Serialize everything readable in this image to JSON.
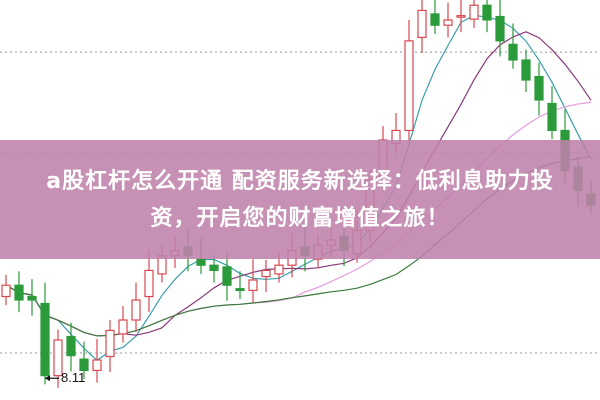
{
  "title": {
    "line1": "a股杠杆怎么开通 配资服务新选择：低利息助力投",
    "line2": "资，开启您的财富增值之旅！"
  },
  "chart_data": {
    "type": "candlestick",
    "ylim": [
      7.86,
      12.46
    ],
    "gridlines": [
      11.86,
      10.7,
      8.4
    ],
    "grid_style": "dotted",
    "up_color": "#d9474f",
    "down_color": "#2a9a3a",
    "ma_colors": [
      "#3aa0a8",
      "#8a3a7a",
      "#e79be0",
      "#3a7a3a"
    ],
    "ma_periods": [
      5,
      10,
      20,
      30
    ],
    "annotation": {
      "label": "8.11",
      "price": 8.11,
      "candle_index": 3
    },
    "closes": [
      9.18,
      9.01,
      9.01,
      8.14,
      8.55,
      8.37,
      8.2,
      8.32,
      8.66,
      8.78,
      9.01,
      9.35,
      9.52,
      9.58,
      9.52,
      9.41,
      9.35,
      9.18,
      9.12,
      9.24,
      9.35,
      9.41,
      9.58,
      9.52,
      9.64,
      9.7,
      9.58,
      9.81,
      10.39,
      10.85,
      10.96,
      11.99,
      12.34,
      12.17,
      12.23,
      12.28,
      12.4,
      12.23,
      11.99,
      11.77,
      11.54,
      11.31,
      10.96,
      10.5,
      10.27,
      10.1
    ],
    "first_open": 9.05
  }
}
